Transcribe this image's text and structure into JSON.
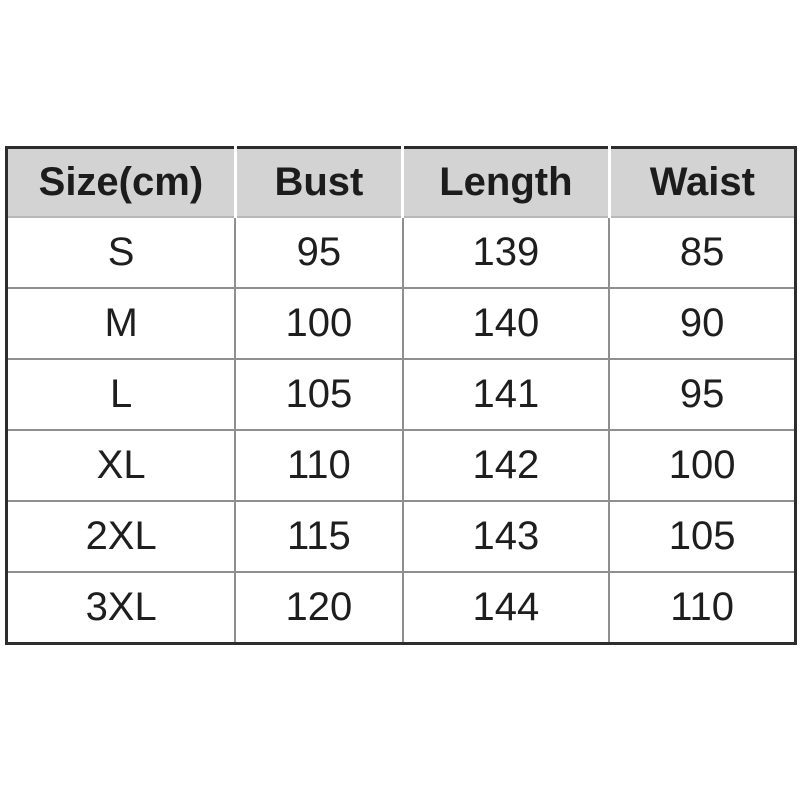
{
  "page": {
    "background_color": "#ffffff"
  },
  "size_chart": {
    "columns": [
      "Size(cm)",
      "Bust",
      "Length",
      "Waist"
    ],
    "rows": [
      [
        "S",
        "95",
        "139",
        "85"
      ],
      [
        "M",
        "100",
        "140",
        "90"
      ],
      [
        "L",
        "105",
        "141",
        "95"
      ],
      [
        "XL",
        "110",
        "142",
        "100"
      ],
      [
        "2XL",
        "115",
        "143",
        "105"
      ],
      [
        "3XL",
        "120",
        "144",
        "110"
      ]
    ],
    "colors": {
      "header_background": "#d3d3d3",
      "outer_border": "#2d2d2d",
      "grid_line": "#8f8f8f",
      "header_cell_separator": "#ffffff",
      "text": "#1c1c1c",
      "body_background": "#ffffff"
    }
  },
  "chart_data": {
    "type": "table",
    "title": "",
    "columns": [
      "Size(cm)",
      "Bust",
      "Length",
      "Waist"
    ],
    "rows": [
      {
        "size": "S",
        "bust": 95,
        "length": 139,
        "waist": 85
      },
      {
        "size": "M",
        "bust": 100,
        "length": 140,
        "waist": 90
      },
      {
        "size": "L",
        "bust": 105,
        "length": 141,
        "waist": 95
      },
      {
        "size": "XL",
        "bust": 110,
        "length": 142,
        "waist": 100
      },
      {
        "size": "2XL",
        "bust": 115,
        "length": 143,
        "waist": 105
      },
      {
        "size": "3XL",
        "bust": 120,
        "length": 144,
        "waist": 110
      }
    ]
  }
}
